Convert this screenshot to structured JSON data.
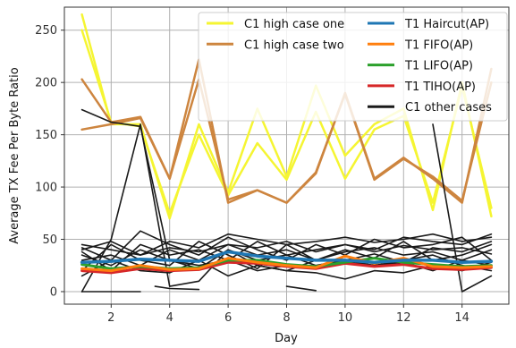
{
  "chart_data": {
    "type": "line",
    "xlabel": "Day",
    "ylabel": "Average TX Fee Per Byte Ratio",
    "xlim": [
      0.4,
      15.6
    ],
    "ylim": [
      -12,
      272
    ],
    "xticks": [
      2,
      4,
      6,
      8,
      10,
      12,
      14
    ],
    "yticks": [
      0,
      50,
      100,
      150,
      200,
      250
    ],
    "grid": true,
    "legend_position": "top-right",
    "series": [
      {
        "name": "C1 high case one",
        "color": "#f5f532",
        "width": 2.5,
        "x": [
          1,
          2,
          3,
          4,
          5,
          6,
          7,
          8,
          9,
          10,
          11,
          12,
          13,
          14,
          15
        ],
        "y": [
          265,
          160,
          160,
          70,
          160,
          95,
          175,
          110,
          197,
          130,
          160,
          175,
          78,
          200,
          72
        ]
      },
      {
        "name": "C1 high case one",
        "color": "#f5f532",
        "width": 2.5,
        "legend": false,
        "x": [
          1,
          2,
          3,
          4,
          5,
          6,
          7,
          8,
          9,
          10,
          11,
          12,
          13,
          14,
          15
        ],
        "y": [
          250,
          162,
          158,
          75,
          150,
          92,
          142,
          107,
          172,
          108,
          155,
          168,
          85,
          196,
          80
        ]
      },
      {
        "name": "C1 high case two",
        "color": "#cd853f",
        "width": 2.5,
        "x": [
          1,
          2,
          3,
          4,
          5,
          6,
          7,
          8,
          9,
          10,
          11,
          12,
          13,
          14,
          15
        ],
        "y": [
          203,
          162,
          167,
          108,
          222,
          85,
          97,
          85,
          113,
          190,
          108,
          128,
          108,
          85,
          213
        ]
      },
      {
        "name": "C1 high case two",
        "color": "#cd853f",
        "width": 2.5,
        "legend": false,
        "x": [
          1,
          2,
          3,
          4,
          5,
          6,
          7,
          8,
          9,
          10,
          11,
          12,
          13,
          14,
          15
        ],
        "y": [
          155,
          160,
          166,
          108,
          203,
          88,
          97,
          85,
          114,
          189,
          107,
          127,
          110,
          87,
          200
        ]
      },
      {
        "name": "C1 other cases",
        "color": "#1a1a1a",
        "width": 1.6,
        "x": [
          1,
          2,
          3,
          4,
          5,
          6,
          7,
          8,
          9,
          10,
          11,
          12,
          13,
          14,
          15
        ],
        "y": [
          174,
          162,
          158,
          30,
          25,
          30,
          20,
          25,
          22,
          30,
          25,
          28,
          20,
          30,
          25
        ]
      },
      {
        "name": "C1 other cases",
        "color": "#1a1a1a",
        "width": 1.6,
        "legend": false,
        "x": [
          1,
          2,
          3,
          4,
          5,
          6,
          7,
          8,
          9,
          10,
          11,
          12,
          13,
          14,
          15
        ],
        "y": [
          0,
          50,
          160,
          5,
          10,
          40,
          25,
          20,
          30,
          28,
          25,
          30,
          35,
          25,
          20
        ]
      },
      {
        "name": "C1 other cases",
        "color": "#1a1a1a",
        "width": 1.6,
        "legend": false,
        "x": [
          1,
          2,
          3,
          4,
          5,
          6,
          7,
          8,
          9,
          10,
          11,
          12,
          13,
          14,
          15
        ],
        "y": [
          45,
          40,
          35,
          48,
          42,
          55,
          50,
          45,
          48,
          52,
          47,
          50,
          55,
          48,
          52
        ]
      },
      {
        "name": "C1 other cases",
        "color": "#1a1a1a",
        "width": 1.6,
        "legend": false,
        "x": [
          1,
          2,
          3,
          4,
          5,
          6,
          7,
          8,
          9,
          10,
          11,
          12,
          13,
          14,
          15
        ],
        "y": [
          38,
          20,
          45,
          35,
          40,
          30,
          48,
          35,
          40,
          45,
          38,
          44,
          40,
          42,
          36
        ]
      },
      {
        "name": "C1 other cases",
        "color": "#1a1a1a",
        "width": 1.6,
        "legend": false,
        "x": [
          1,
          2,
          3,
          4,
          5,
          6,
          7,
          8,
          9,
          10,
          11,
          12,
          13,
          14,
          15
        ],
        "y": [
          30,
          35,
          25,
          40,
          30,
          45,
          35,
          40,
          30,
          38,
          42,
          35,
          38,
          30,
          40
        ]
      },
      {
        "name": "C1 other cases",
        "color": "#1a1a1a",
        "width": 1.6,
        "legend": false,
        "x": [
          1,
          2,
          3,
          4,
          5,
          6,
          7,
          8,
          9,
          10,
          11,
          12,
          13,
          14,
          15
        ],
        "y": [
          42,
          30,
          58,
          45,
          35,
          52,
          40,
          30,
          45,
          35,
          50,
          42,
          45,
          52,
          30
        ]
      },
      {
        "name": "C1 other cases",
        "color": "#1a1a1a",
        "width": 1.6,
        "legend": false,
        "x": [
          1,
          2,
          3,
          4,
          5,
          6,
          7,
          8,
          9,
          10,
          11,
          12,
          13,
          14,
          15
        ],
        "y": [
          20,
          45,
          30,
          25,
          48,
          35,
          22,
          45,
          30,
          40,
          32,
          48,
          30,
          35,
          45
        ]
      },
      {
        "name": "C1 other cases",
        "color": "#1a1a1a",
        "width": 1.6,
        "legend": false,
        "x": [
          1,
          2,
          3,
          4,
          5,
          6,
          7,
          8,
          9,
          10,
          11,
          12,
          13,
          14,
          15
        ],
        "y": [
          35,
          25,
          40,
          30,
          22,
          40,
          30,
          35,
          25,
          30,
          36,
          28,
          42,
          38,
          48
        ]
      },
      {
        "name": "C1 other cases",
        "color": "#1a1a1a",
        "width": 1.6,
        "legend": false,
        "x": [
          1,
          2,
          3,
          4,
          5,
          6,
          7,
          8,
          9,
          10,
          11,
          12,
          13,
          14,
          15
        ],
        "y": [
          15,
          30,
          20,
          18,
          30,
          15,
          25,
          20,
          18,
          12,
          20,
          18,
          25,
          20,
          28
        ]
      },
      {
        "name": "C1 other cases",
        "color": "#1a1a1a",
        "width": 1.6,
        "legend": false,
        "x": [
          1,
          2,
          3,
          4,
          5,
          6,
          7,
          8,
          9,
          10,
          11,
          12,
          13,
          14,
          15
        ],
        "y": [
          40,
          48,
          35,
          42,
          38,
          45,
          42,
          48,
          38,
          45,
          40,
          52,
          48,
          45,
          55
        ]
      },
      {
        "name": "C1 other cases",
        "color": "#1a1a1a",
        "width": 1.6,
        "legend": false,
        "x": [
          1,
          2,
          3
        ],
        "y": [
          0,
          0,
          0
        ]
      },
      {
        "name": "C1 other cases",
        "color": "#1a1a1a",
        "width": 1.6,
        "legend": false,
        "x": [
          3.5,
          4,
          5
        ],
        "y": [
          5,
          3,
          2
        ]
      },
      {
        "name": "C1 other cases",
        "color": "#1a1a1a",
        "width": 1.6,
        "legend": false,
        "x": [
          8,
          9
        ],
        "y": [
          5,
          1
        ]
      },
      {
        "name": "C1 other cases",
        "color": "#1a1a1a",
        "width": 1.6,
        "legend": false,
        "x": [
          13,
          14,
          15
        ],
        "y": [
          160,
          0,
          15
        ]
      },
      {
        "name": "T1 TIHO(AP)",
        "color": "#d62728",
        "width": 3,
        "x": [
          1,
          2,
          3,
          4,
          5,
          6,
          7,
          8,
          9,
          10,
          11,
          12,
          13,
          14,
          15
        ],
        "y": [
          20,
          18,
          22,
          20,
          21,
          28,
          27,
          24,
          22,
          27,
          24,
          26,
          22,
          21,
          23
        ]
      },
      {
        "name": "T1 LIFO(AP)",
        "color": "#2ca02c",
        "width": 3,
        "x": [
          1,
          2,
          3,
          4,
          5,
          6,
          7,
          8,
          9,
          10,
          11,
          12,
          13,
          14,
          15
        ],
        "y": [
          26,
          22,
          24,
          22,
          23,
          30,
          30,
          26,
          24,
          28,
          32,
          28,
          26,
          24,
          25
        ]
      },
      {
        "name": "T1 FIFO(AP)",
        "color": "#ff7f0e",
        "width": 3,
        "x": [
          1,
          2,
          3,
          4,
          5,
          6,
          7,
          8,
          9,
          10,
          11,
          12,
          13,
          14,
          15
        ],
        "y": [
          22,
          20,
          25,
          21,
          22,
          32,
          28,
          25,
          23,
          34,
          27,
          32,
          24,
          23,
          24
        ]
      },
      {
        "name": "T1 Haircut(AP)",
        "color": "#1f77b4",
        "width": 3.5,
        "x": [
          1,
          2,
          3,
          4,
          5,
          6,
          7,
          8,
          9,
          10,
          11,
          12,
          13,
          14,
          15
        ],
        "y": [
          28,
          29,
          31,
          30,
          29,
          38,
          34,
          32,
          30,
          30,
          28,
          30,
          30,
          28,
          29
        ]
      }
    ],
    "legend": {
      "col1": [
        {
          "label": "C1 high case one",
          "color": "#f5f532"
        },
        {
          "label": "C1 high case two",
          "color": "#cd853f"
        }
      ],
      "col2": [
        {
          "label": "T1 Haircut(AP)",
          "color": "#1f77b4"
        },
        {
          "label": "T1 FIFO(AP)",
          "color": "#ff7f0e"
        },
        {
          "label": "T1 LIFO(AP)",
          "color": "#2ca02c"
        },
        {
          "label": "T1 TIHO(AP)",
          "color": "#d62728"
        },
        {
          "label": "C1 other cases",
          "color": "#1a1a1a"
        }
      ]
    }
  }
}
